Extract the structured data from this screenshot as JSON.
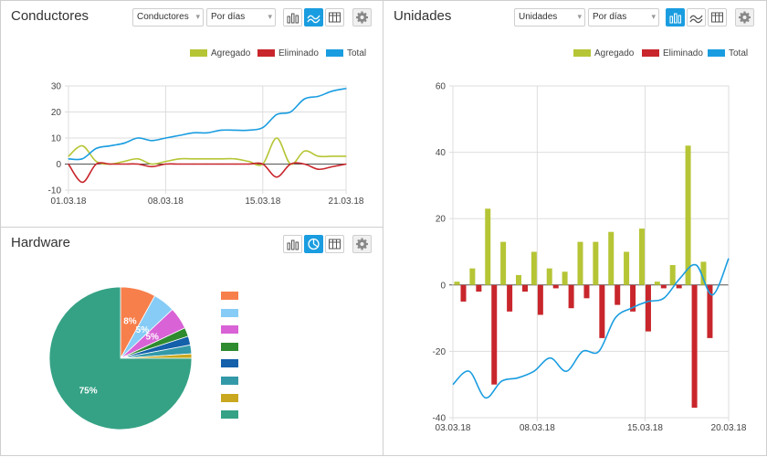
{
  "colors": {
    "agregado": "#b6c535",
    "eliminado": "#c8262c",
    "total": "#1a9de0",
    "accent": "#1a9de0"
  },
  "conductores": {
    "title": "Conductores",
    "select1": "Conductores",
    "select2": "Por días",
    "legend": [
      "Agregado",
      "Eliminado",
      "Total"
    ],
    "chart_data": {
      "type": "line",
      "x_ticks": [
        "01.03.18",
        "08.03.18",
        "15.03.18",
        "21.03.18"
      ],
      "ylim": [
        -10,
        30
      ],
      "y_ticks": [
        -10,
        0,
        10,
        20,
        30
      ],
      "x": [
        "01.03.18",
        "02.03.18",
        "03.03.18",
        "04.03.18",
        "05.03.18",
        "06.03.18",
        "07.03.18",
        "08.03.18",
        "09.03.18",
        "10.03.18",
        "11.03.18",
        "12.03.18",
        "13.03.18",
        "14.03.18",
        "15.03.18",
        "16.03.18",
        "17.03.18",
        "18.03.18",
        "19.03.18",
        "20.03.18",
        "21.03.18"
      ],
      "series": [
        {
          "name": "Agregado",
          "values": [
            3,
            7,
            1,
            0,
            1,
            2,
            0,
            1,
            2,
            2,
            2,
            2,
            2,
            1,
            0,
            10,
            0,
            5,
            3,
            3,
            3
          ]
        },
        {
          "name": "Eliminado",
          "values": [
            0,
            -7,
            0,
            0,
            0,
            0,
            -1,
            0,
            0,
            0,
            0,
            0,
            0,
            0,
            0,
            -5,
            0,
            0,
            -2,
            -1,
            0
          ]
        },
        {
          "name": "Total",
          "values": [
            2,
            2,
            6,
            7,
            8,
            10,
            9,
            10,
            11,
            12,
            12,
            13,
            13,
            13,
            14,
            19,
            20,
            25,
            26,
            28,
            29
          ]
        }
      ]
    }
  },
  "unidades": {
    "title": "Unidades",
    "select1": "Unidades",
    "select2": "Por días",
    "legend": [
      "Agregado",
      "Eliminado",
      "Total"
    ],
    "chart_data": {
      "type": "bar",
      "x_ticks": [
        "03.03.18",
        "08.03.18",
        "15.03.18",
        "20.03.18"
      ],
      "ylim": [
        -40,
        60
      ],
      "y_ticks": [
        -40,
        -20,
        0,
        20,
        40,
        60
      ],
      "categories": [
        "03.03.18",
        "04.03.18",
        "05.03.18",
        "06.03.18",
        "07.03.18",
        "08.03.18",
        "09.03.18",
        "10.03.18",
        "11.03.18",
        "12.03.18",
        "13.03.18",
        "14.03.18",
        "15.03.18",
        "16.03.18",
        "17.03.18",
        "18.03.18",
        "19.03.18",
        "20.03.18"
      ],
      "series": [
        {
          "name": "Agregado",
          "type": "bar",
          "values": [
            1,
            5,
            23,
            13,
            3,
            10,
            5,
            4,
            13,
            13,
            16,
            10,
            17,
            1,
            6,
            42,
            7,
            0
          ]
        },
        {
          "name": "Eliminado",
          "type": "bar",
          "values": [
            -5,
            -2,
            -30,
            -8,
            -2,
            -9,
            -1,
            -7,
            -4,
            -16,
            -6,
            -8,
            -14,
            -1,
            -1,
            -37,
            -16,
            0
          ]
        },
        {
          "name": "Total",
          "type": "line",
          "values": [
            -30,
            -26,
            -34,
            -29,
            -28,
            -26,
            -22,
            -26,
            -20,
            -20,
            -10,
            -7,
            -5,
            -4,
            2,
            6,
            -3,
            8
          ]
        }
      ]
    }
  },
  "hardware": {
    "title": "Hardware",
    "chart_data": {
      "type": "pie",
      "labels": [
        "8%",
        "5%",
        "5%",
        "",
        "",
        "",
        "",
        "75%"
      ],
      "values": [
        8,
        5,
        5,
        2,
        2,
        2,
        1,
        75
      ],
      "colors": [
        "#f77f4c",
        "#86ccf6",
        "#d862d6",
        "#2e8b2e",
        "#1460aa",
        "#3399a8",
        "#c9a820",
        "#35a285"
      ]
    }
  }
}
